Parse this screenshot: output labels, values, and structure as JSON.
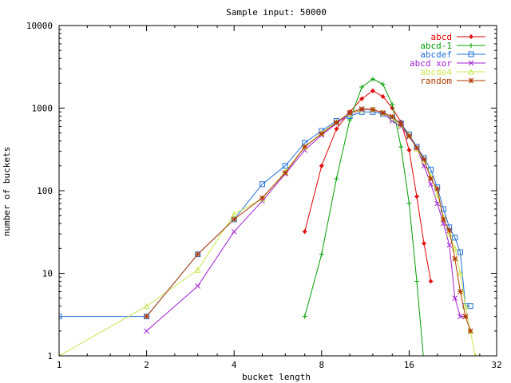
{
  "chart_data": {
    "type": "line",
    "title": "Sample input: 50000",
    "xlabel": "bucket length",
    "ylabel": "number of buckets",
    "xscale": "log2",
    "yscale": "log10",
    "xlim": [
      1,
      32
    ],
    "ylim": [
      1,
      10000
    ],
    "xticks": [
      1,
      2,
      4,
      8,
      16,
      32
    ],
    "xtick_labels": [
      "1",
      "2",
      "4",
      "8",
      "16",
      "32"
    ],
    "yticks": [
      1,
      10,
      100,
      1000,
      10000
    ],
    "ytick_labels": [
      "1",
      "10",
      "100",
      "1000",
      "10000"
    ],
    "grid": false,
    "legend_position": "top-right",
    "series": [
      {
        "name": "abcd",
        "color": "#e00000",
        "marker": "plus-dot",
        "points": [
          [
            7,
            32
          ],
          [
            8,
            200
          ],
          [
            9,
            560
          ],
          [
            10,
            900
          ],
          [
            11,
            1300
          ],
          [
            12,
            1620
          ],
          [
            13,
            1380
          ],
          [
            14,
            1000
          ],
          [
            15,
            680
          ],
          [
            16,
            310
          ],
          [
            17,
            85
          ],
          [
            18,
            23
          ],
          [
            19,
            8
          ]
        ]
      },
      {
        "name": "abcd-1",
        "color": "#00a000",
        "marker": "plus",
        "points": [
          [
            7,
            3
          ],
          [
            8,
            17
          ],
          [
            9,
            140
          ],
          [
            10,
            720
          ],
          [
            11,
            1800
          ],
          [
            12,
            2250
          ],
          [
            13,
            1950
          ],
          [
            14,
            1100
          ],
          [
            15,
            340
          ],
          [
            16,
            70
          ],
          [
            17,
            8
          ],
          [
            18,
            0.8
          ]
        ]
      },
      {
        "name": "abcdef",
        "color": "#2070d8",
        "marker": "square",
        "points": [
          [
            1,
            3
          ],
          [
            2,
            3
          ],
          [
            3,
            17
          ],
          [
            4,
            45
          ],
          [
            5,
            120
          ],
          [
            6,
            200
          ],
          [
            7,
            380
          ],
          [
            8,
            530
          ],
          [
            9,
            700
          ],
          [
            10,
            800
          ],
          [
            11,
            900
          ],
          [
            12,
            900
          ],
          [
            13,
            850
          ],
          [
            14,
            750
          ],
          [
            15,
            650
          ],
          [
            16,
            480
          ],
          [
            17,
            340
          ],
          [
            18,
            250
          ],
          [
            19,
            180
          ],
          [
            20,
            110
          ],
          [
            21,
            60
          ],
          [
            22,
            36
          ],
          [
            23,
            27
          ],
          [
            24,
            18
          ],
          [
            25,
            4
          ],
          [
            26,
            4
          ]
        ]
      },
      {
        "name": "abcd xor",
        "color": "#a020d0",
        "marker": "x",
        "points": [
          [
            2,
            2
          ],
          [
            3,
            7
          ],
          [
            4,
            32
          ],
          [
            5,
            75
          ],
          [
            6,
            160
          ],
          [
            7,
            310
          ],
          [
            8,
            470
          ],
          [
            9,
            650
          ],
          [
            10,
            850
          ],
          [
            11,
            950
          ],
          [
            12,
            960
          ],
          [
            13,
            870
          ],
          [
            14,
            700
          ],
          [
            15,
            600
          ],
          [
            16,
            450
          ],
          [
            17,
            330
          ],
          [
            18,
            200
          ],
          [
            19,
            120
          ],
          [
            20,
            70
          ],
          [
            21,
            40
          ],
          [
            22,
            22
          ],
          [
            23,
            5
          ],
          [
            24,
            3
          ],
          [
            25,
            3
          ]
        ]
      },
      {
        "name": "abcde4",
        "color": "#c8e850",
        "marker": "triangle",
        "points": [
          [
            1,
            1
          ],
          [
            2,
            4
          ],
          [
            3,
            11
          ],
          [
            4,
            52
          ],
          [
            5,
            80
          ],
          [
            6,
            170
          ],
          [
            7,
            340
          ],
          [
            8,
            500
          ],
          [
            9,
            680
          ],
          [
            10,
            860
          ],
          [
            11,
            960
          ],
          [
            12,
            970
          ],
          [
            13,
            880
          ],
          [
            14,
            760
          ],
          [
            15,
            620
          ],
          [
            16,
            470
          ],
          [
            17,
            320
          ],
          [
            18,
            230
          ],
          [
            19,
            150
          ],
          [
            20,
            90
          ],
          [
            21,
            48
          ],
          [
            22,
            30
          ],
          [
            23,
            20
          ],
          [
            24,
            10
          ],
          [
            25,
            4
          ],
          [
            26,
            2
          ],
          [
            27,
            1
          ]
        ]
      },
      {
        "name": "random",
        "color": "#b03800",
        "marker": "star",
        "points": [
          [
            2,
            3
          ],
          [
            3,
            17
          ],
          [
            4,
            45
          ],
          [
            5,
            82
          ],
          [
            6,
            165
          ],
          [
            7,
            340
          ],
          [
            8,
            490
          ],
          [
            9,
            670
          ],
          [
            10,
            880
          ],
          [
            11,
            980
          ],
          [
            12,
            960
          ],
          [
            13,
            880
          ],
          [
            14,
            790
          ],
          [
            15,
            640
          ],
          [
            16,
            460
          ],
          [
            17,
            330
          ],
          [
            18,
            240
          ],
          [
            19,
            140
          ],
          [
            20,
            105
          ],
          [
            21,
            45
          ],
          [
            22,
            33
          ],
          [
            23,
            15
          ],
          [
            24,
            6
          ],
          [
            25,
            3
          ],
          [
            26,
            2
          ]
        ]
      }
    ]
  }
}
